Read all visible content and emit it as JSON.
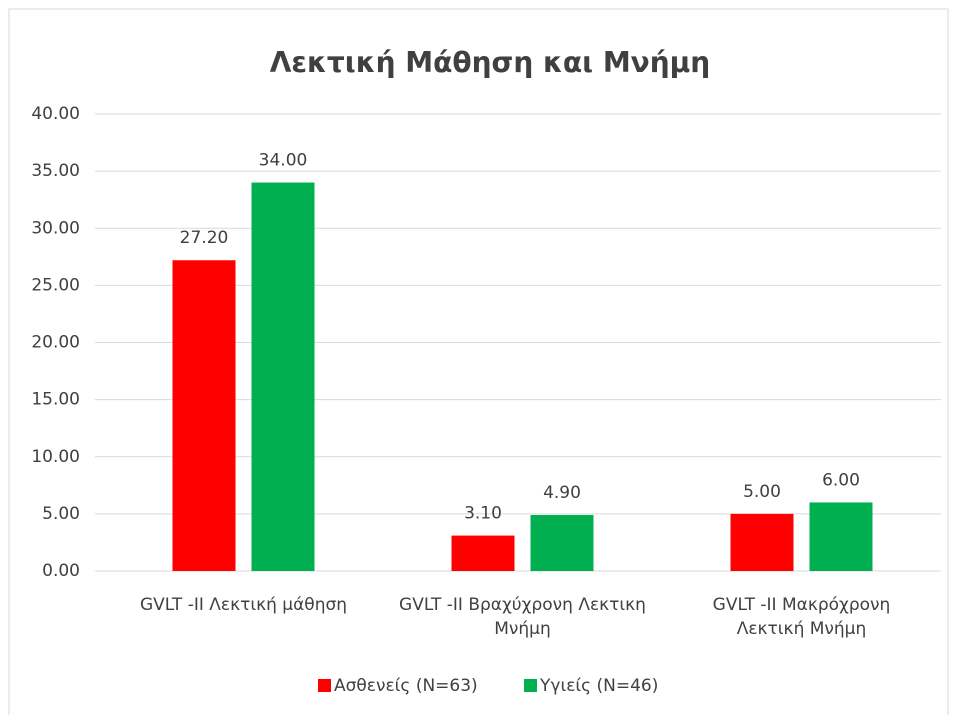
{
  "chart_data": {
    "type": "bar",
    "title": "Λεκτική Μάθηση και Μνήμη",
    "categories": [
      "GVLT -II Λεκτική μάθηση",
      "GVLT -II Βραχύχρονη Λεκτικη Μνήμη",
      "GVLT -II Μακρόχρονη Λεκτική Μνήμη"
    ],
    "series": [
      {
        "name": "Ασθενείς (N=63)",
        "color": "#ff0000",
        "values": [
          27.2,
          3.1,
          5.0
        ],
        "value_labels": [
          "27.20",
          "3.10",
          "5.00"
        ]
      },
      {
        "name": "Υγιείς (N=46)",
        "color": "#00b050",
        "values": [
          34.0,
          4.9,
          6.0
        ],
        "value_labels": [
          "34.00",
          "4.90",
          "6.00"
        ]
      }
    ],
    "ylim": [
      0,
      40
    ],
    "yticks": [
      {
        "value": 0,
        "label": "0.00"
      },
      {
        "value": 5,
        "label": "5.00"
      },
      {
        "value": 10,
        "label": "10.00"
      },
      {
        "value": 15,
        "label": "15.00"
      },
      {
        "value": 20,
        "label": "20.00"
      },
      {
        "value": 25,
        "label": "25.00"
      },
      {
        "value": 30,
        "label": "30.00"
      },
      {
        "value": 35,
        "label": "35.00"
      },
      {
        "value": 40,
        "label": "40.00"
      }
    ],
    "grid": true,
    "legend": "bottom"
  }
}
